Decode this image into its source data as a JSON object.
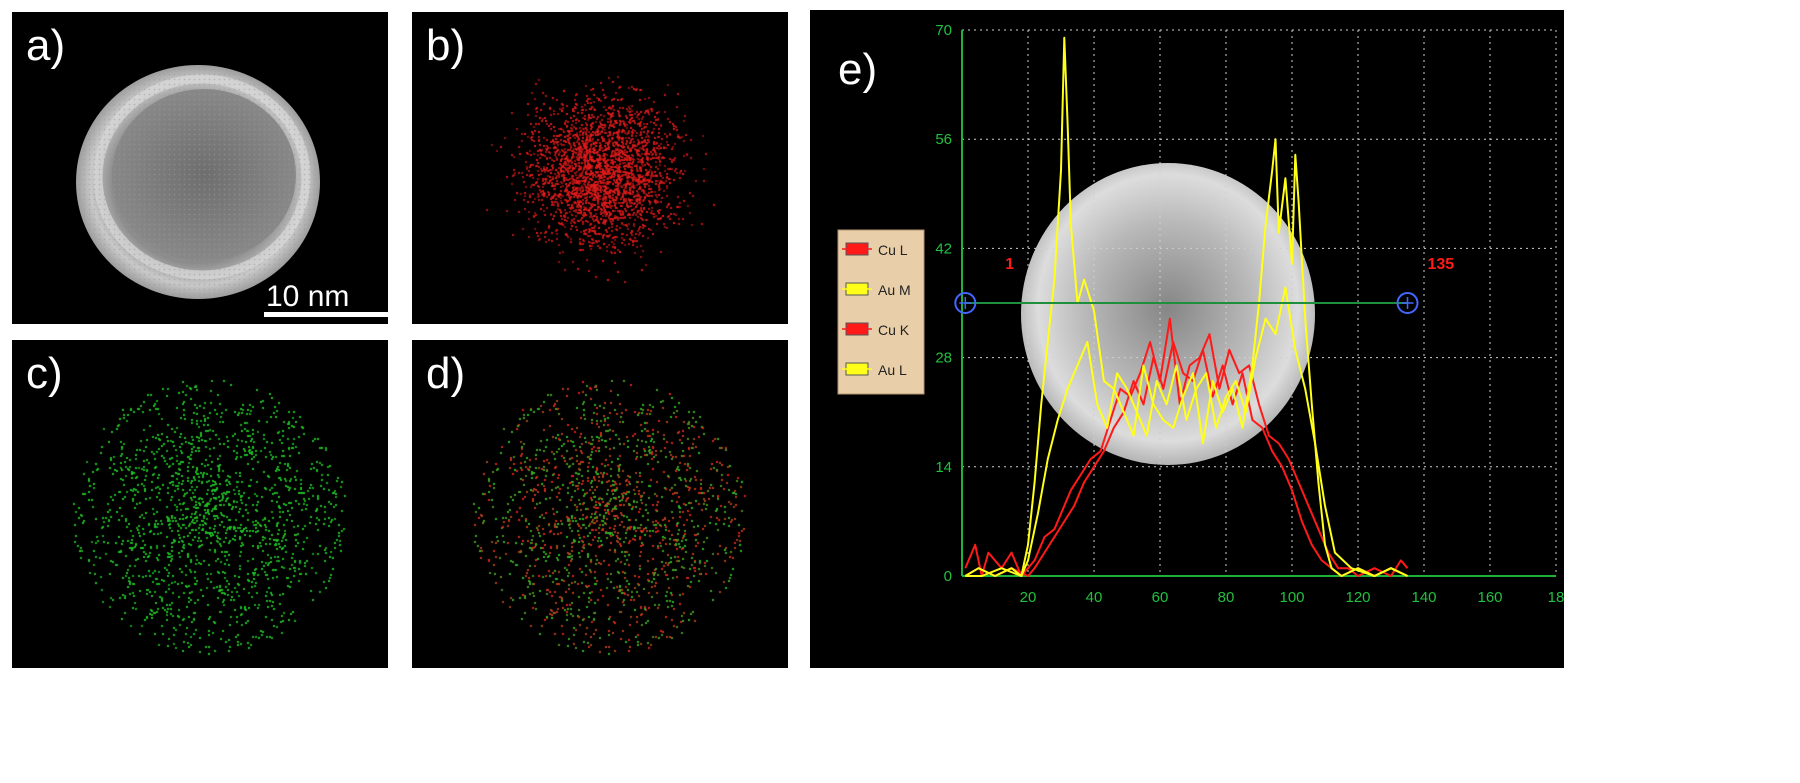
{
  "panels": {
    "a": {
      "label": "a)",
      "scale_bar": "10 nm"
    },
    "b": {
      "label": "b)",
      "dot_color": "#e21a1a"
    },
    "c": {
      "label": "c)",
      "dot_color": "#1fbf24"
    },
    "d": {
      "label": "d)",
      "dot_colors": [
        "#e21a1a",
        "#1fbf24"
      ]
    },
    "e": {
      "label": "e)"
    }
  },
  "chart_data": {
    "type": "line",
    "xlim": [
      0,
      180
    ],
    "ylim": [
      0,
      70
    ],
    "x_ticks": [
      "20",
      "40",
      "60",
      "80",
      "100",
      "120",
      "140",
      "160",
      "18"
    ],
    "y_ticks": [
      "0",
      "14",
      "28",
      "42",
      "56",
      "70"
    ],
    "grid": true,
    "legend_position": "left",
    "markers": [
      {
        "label": "1",
        "x": 1
      },
      {
        "label": "135",
        "x": 135
      }
    ],
    "marker_y": 35,
    "series": [
      {
        "name": "Cu L",
        "color": "#ff1a1a",
        "x": [
          1,
          4,
          6,
          8,
          12,
          15,
          18,
          20,
          22,
          25,
          28,
          30,
          33,
          36,
          39,
          42,
          45,
          48,
          51,
          54,
          57,
          60,
          63,
          66,
          69,
          72,
          75,
          78,
          81,
          84,
          87,
          90,
          93,
          96,
          99,
          102,
          105,
          108,
          111,
          114,
          117,
          120,
          125,
          130,
          133,
          135
        ],
        "y": [
          1,
          4,
          0,
          3,
          1,
          3,
          0,
          1,
          2,
          5,
          6,
          8,
          11,
          13,
          15,
          16,
          20,
          24,
          23,
          26,
          30,
          25,
          33,
          22,
          27,
          28,
          31,
          24,
          29,
          26,
          27,
          22,
          18,
          17,
          15,
          12,
          9,
          6,
          3,
          1,
          1,
          0,
          1,
          0,
          2,
          1
        ]
      },
      {
        "name": "Au M",
        "color": "#ffff1a",
        "x": [
          1,
          5,
          10,
          15,
          18,
          20,
          22,
          24,
          26,
          28,
          30,
          31,
          32,
          33,
          35,
          37,
          40,
          43,
          46,
          49,
          52,
          55,
          58,
          61,
          64,
          67,
          70,
          73,
          76,
          79,
          82,
          85,
          88,
          90,
          92,
          94,
          95,
          96,
          98,
          100,
          101,
          102,
          104,
          106,
          108,
          110,
          112,
          115,
          120,
          125,
          130,
          135
        ],
        "y": [
          0,
          1,
          0,
          1,
          0,
          4,
          12,
          22,
          30,
          38,
          52,
          69,
          58,
          45,
          35,
          38,
          34,
          25,
          24,
          21,
          18,
          27,
          22,
          20,
          19,
          23,
          26,
          17,
          25,
          21,
          24,
          19,
          27,
          35,
          45,
          52,
          56,
          44,
          51,
          40,
          54,
          48,
          33,
          22,
          12,
          4,
          1,
          0,
          1,
          0,
          1,
          0
        ]
      },
      {
        "name": "Cu K",
        "color": "#ff1a1a",
        "x": [
          1,
          5,
          10,
          15,
          20,
          22,
          25,
          28,
          31,
          34,
          37,
          40,
          43,
          46,
          49,
          52,
          55,
          58,
          61,
          64,
          67,
          70,
          73,
          76,
          79,
          82,
          85,
          88,
          91,
          94,
          97,
          100,
          103,
          106,
          109,
          112,
          115,
          120,
          125,
          130,
          135
        ],
        "y": [
          0,
          1,
          0,
          1,
          0,
          1,
          3,
          5,
          7,
          9,
          12,
          14,
          16,
          19,
          21,
          25,
          22,
          28,
          24,
          30,
          26,
          25,
          29,
          23,
          27,
          22,
          26,
          20,
          19,
          16,
          14,
          11,
          7,
          4,
          2,
          1,
          0,
          1,
          0,
          1,
          0
        ]
      },
      {
        "name": "Au L",
        "color": "#ffff1a",
        "x": [
          1,
          6,
          12,
          18,
          20,
          23,
          26,
          29,
          32,
          35,
          38,
          41,
          44,
          47,
          50,
          53,
          56,
          59,
          62,
          65,
          68,
          71,
          74,
          77,
          80,
          83,
          86,
          89,
          92,
          95,
          98,
          101,
          104,
          107,
          110,
          113,
          118,
          125,
          130,
          135
        ],
        "y": [
          0,
          0,
          1,
          0,
          2,
          8,
          15,
          20,
          24,
          27,
          30,
          22,
          19,
          26,
          24,
          21,
          18,
          25,
          22,
          27,
          20,
          24,
          26,
          19,
          23,
          25,
          21,
          28,
          33,
          31,
          37,
          29,
          24,
          17,
          9,
          3,
          1,
          0,
          1,
          0
        ]
      }
    ]
  }
}
